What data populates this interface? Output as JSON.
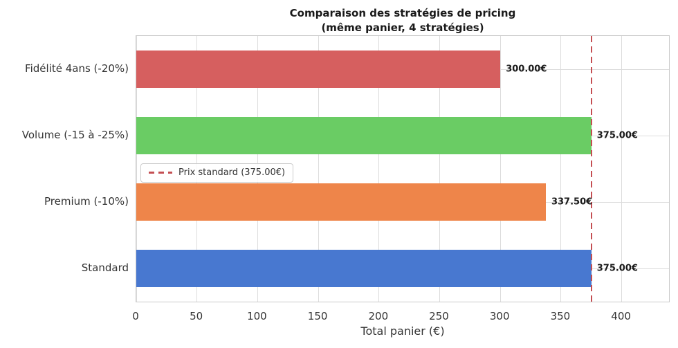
{
  "figure": {
    "title_lines": [
      "Comparaison des stratégies de pricing",
      "(même panier, 4 stratégies)"
    ]
  },
  "chart_data": {
    "type": "bar",
    "orientation": "horizontal",
    "title": "Comparaison des stratégies de pricing\n(même panier, 4 stratégies)",
    "xlabel": "Total panier (€)",
    "ylabel": "",
    "categories": [
      "Fidélité 4ans (-20%)",
      "Volume (-15 à -25%)",
      "Premium (-10%)",
      "Standard"
    ],
    "values": [
      300.0,
      375.0,
      337.5,
      375.0
    ],
    "value_labels": [
      "300.00€",
      "375.00€",
      "337.50€",
      "375.00€"
    ],
    "bar_colors": [
      "#d65f5f",
      "#6acc64",
      "#ee854a",
      "#4878d0"
    ],
    "xlim": [
      0,
      439
    ],
    "xticks": [
      0,
      50,
      100,
      150,
      200,
      250,
      300,
      350,
      400
    ],
    "grid": true,
    "grid_color": "#dcdcdc",
    "legend_position": "center-left",
    "reference_line": {
      "value": 375.0,
      "label": "Prix standard (375.00€)",
      "color": "#c44e52",
      "style": "dashed"
    }
  }
}
